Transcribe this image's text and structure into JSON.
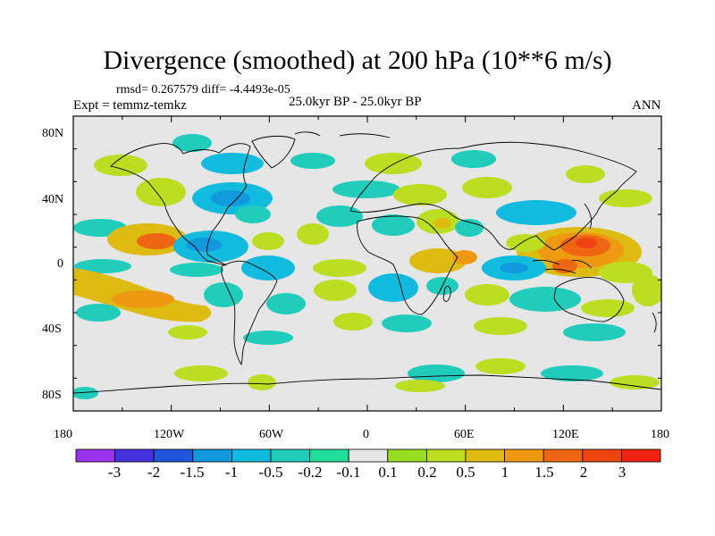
{
  "figure": {
    "title": "Divergence (smoothed) at 200 hPa (10**6 m/s)",
    "stats": "rmsd= 0.267579 diff= -4.4493e-05",
    "experiment": "Expt = temmz-temkz",
    "period": "25.0kyr BP - 25.0kyr BP",
    "season": "ANN"
  },
  "map": {
    "background_color": "#e6e6e6",
    "lon_ticks": [
      "180",
      "120W",
      "60W",
      "0",
      "60E",
      "120E",
      "180"
    ],
    "lat_ticks": [
      "80N",
      "40N",
      "0",
      "40S",
      "80S"
    ]
  },
  "colorbar": {
    "colors": [
      "#9933ee",
      "#4433dd",
      "#2255dd",
      "#1199dd",
      "#11bbdd",
      "#22ccbb",
      "#22dd99",
      "#e6e6e6",
      "#99dd22",
      "#bbdd22",
      "#ddbb11",
      "#ee9911",
      "#ee6611",
      "#ee4411",
      "#ee2211"
    ],
    "labels": [
      "-3",
      "-2",
      "-1.5",
      "-1",
      "-0.5",
      "-0.2",
      "-0.1",
      "0.1",
      "0.2",
      "0.5",
      "1",
      "1.5",
      "2",
      "3"
    ]
  }
}
